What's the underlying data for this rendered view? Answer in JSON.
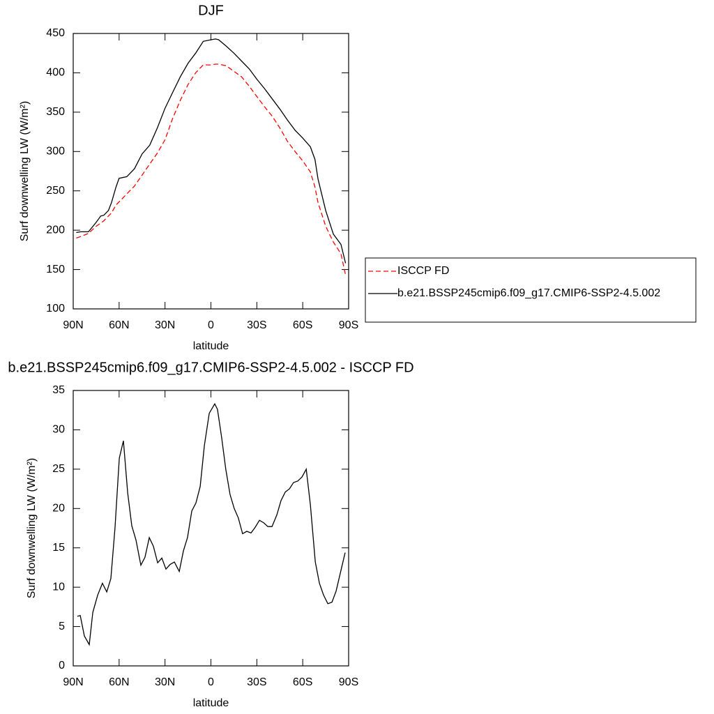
{
  "chart_data": [
    {
      "type": "line",
      "title": "DJF",
      "x_label": "latitude",
      "y_label": "Surf downwelling LW (W/m²)",
      "x": [
        88,
        85,
        80,
        75,
        72,
        70,
        67,
        65,
        62,
        60,
        55,
        50,
        45,
        40,
        35,
        30,
        25,
        20,
        15,
        10,
        5,
        0,
        -3,
        -5,
        -10,
        -15,
        -20,
        -25,
        -30,
        -35,
        -40,
        -45,
        -50,
        -55,
        -60,
        -65,
        -68,
        -70,
        -75,
        -80,
        -85,
        -88
      ],
      "series": [
        {
          "name": "ISCCP FD",
          "color": "#ff0000",
          "linestyle": "dashed",
          "values": [
            190,
            192,
            196,
            205,
            209,
            212,
            218,
            222,
            232,
            236,
            246,
            256,
            270,
            284,
            298,
            315,
            342,
            365,
            385,
            400,
            410,
            410,
            411,
            411,
            409,
            402,
            395,
            383,
            370,
            357,
            345,
            330,
            313,
            300,
            288,
            274,
            255,
            235,
            205,
            185,
            170,
            143
          ]
        },
        {
          "name": "b.e21.BSSP245cmip6.f09_g17.CMIP6-SSP2-4.5.002",
          "color": "#000000",
          "linestyle": "solid",
          "values": [
            197,
            198,
            198,
            210,
            218,
            219,
            225,
            235,
            255,
            266,
            268,
            278,
            297,
            308,
            330,
            355,
            375,
            395,
            412,
            425,
            440,
            442,
            443,
            442,
            434,
            425,
            415,
            405,
            392,
            380,
            367,
            354,
            340,
            327,
            317,
            306,
            290,
            265,
            225,
            195,
            182,
            158
          ]
        }
      ],
      "xlim": [
        90,
        -90
      ],
      "xticks": [
        {
          "value": 90,
          "label": "90N"
        },
        {
          "value": 60,
          "label": "60N"
        },
        {
          "value": 30,
          "label": "30N"
        },
        0,
        {
          "value": -30,
          "label": "30S"
        },
        {
          "value": -60,
          "label": "60S"
        },
        {
          "value": -90,
          "label": "90S"
        }
      ],
      "ylim": [
        100,
        450
      ],
      "yticks": [
        100,
        150,
        200,
        250,
        300,
        350,
        400,
        450
      ],
      "legend": "right"
    },
    {
      "type": "line",
      "title": "b.e21.BSSP245cmip6.f09_g17.CMIP6-SSP2-4.5.002 - ISCCP FD",
      "x_label": "latitude",
      "y_label": "Surf downwelling LW (W/m²)",
      "x": [
        87.3,
        85.4,
        82.7,
        79.5,
        77.2,
        74.0,
        70.9,
        68.1,
        65.4,
        62.7,
        59.9,
        57.2,
        54.4,
        51.7,
        49.0,
        45.8,
        43.1,
        40.3,
        37.6,
        34.8,
        32.1,
        29.4,
        26.6,
        23.9,
        20.7,
        18.0,
        15.3,
        12.5,
        9.8,
        7.0,
        4.3,
        1.1,
        -2.5,
        -4.3,
        -7.0,
        -9.7,
        -12.5,
        -15.2,
        -17.9,
        -20.7,
        -23.4,
        -26.2,
        -28.9,
        -31.7,
        -34.4,
        -37.2,
        -39.9,
        -43.1,
        -45.8,
        -48.6,
        -51.3,
        -54.0,
        -56.8,
        -59.5,
        -62.3,
        -65.0,
        -68.2,
        -70.9,
        -73.6,
        -76.4,
        -79.1,
        -81.8,
        -84.6,
        -87.7
      ],
      "color": "#000000",
      "values": [
        6.3,
        6.4,
        3.8,
        2.7,
        6.8,
        9,
        10.5,
        9.4,
        11.1,
        17.5,
        26.4,
        28.6,
        22,
        17.8,
        16,
        12.8,
        13.8,
        16.3,
        15.2,
        13.1,
        13.7,
        12.3,
        12.9,
        13.2,
        12,
        14.6,
        16.3,
        19.7,
        20.7,
        22.8,
        28,
        32.1,
        33.3,
        32.6,
        29,
        25,
        21.8,
        20,
        18.8,
        16.8,
        17.1,
        16.9,
        17.6,
        18.5,
        18.2,
        17.7,
        17.7,
        19.2,
        21,
        22.1,
        22.5,
        23.3,
        23.5,
        24,
        25,
        20.5,
        13.2,
        10.5,
        9,
        7.9,
        8.1,
        9.5,
        11.8,
        14.4
      ],
      "xlim": [
        90,
        -90
      ],
      "xticks": [
        {
          "value": 90,
          "label": "90N"
        },
        {
          "value": 60,
          "label": "60N"
        },
        {
          "value": 30,
          "label": "30N"
        },
        0,
        {
          "value": -30,
          "label": "30S"
        },
        {
          "value": -60,
          "label": "60S"
        },
        {
          "value": -90,
          "label": "90S"
        }
      ],
      "ylim": [
        0,
        35
      ],
      "yticks": [
        0,
        5,
        10,
        15,
        20,
        25,
        30,
        35
      ]
    }
  ]
}
